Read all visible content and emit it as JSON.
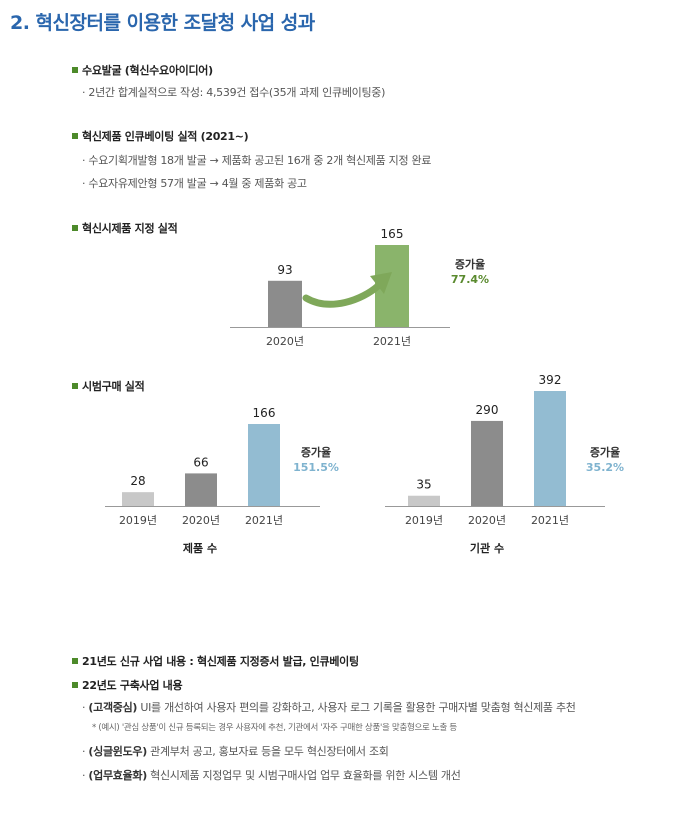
{
  "title": "2. 혁신장터를 이용한 조달청 사업 성과",
  "sections": {
    "demand": {
      "heading": "수요발굴 (혁신수요아이디어)",
      "items": [
        "· 2년간 합계실적으로 작성: 4,539건 접수(35개 과제 인큐베이팅중)"
      ]
    },
    "incubating": {
      "heading": "혁신제품 인큐베이팅 실적 (2021∼)",
      "items": [
        "· 수요기획개발형 18개 발굴 → 제품화 공고된 16개 중 2개 혁신제품 지정 완료",
        "· 수요자유제안형 57개 발굴 → 4월 중 제품화 공고"
      ]
    },
    "trial_designation": {
      "heading": "혁신시제품 지정 실적"
    },
    "trial_purchase": {
      "heading": "시범구매 실적"
    },
    "new_2021": {
      "heading": "21년도 신규 사업 내용 : 혁신제품 지정증서 발급, 인큐베이팅"
    },
    "build_2022": {
      "heading": "22년도 구축사업 내용",
      "items": [
        {
          "bold": "(고객중심)",
          "text": " UI를 개선하여 사용자 편의를 강화하고, 사용자 로그 기록을 활용한 구매자별 맞춤형 혁신제품 추천"
        },
        {
          "bold": "(싱글윈도우)",
          "text": " 관계부처 공고, 홍보자료 등을 모두 혁신장터에서 조회"
        },
        {
          "bold": "(업무효율화)",
          "text": " 혁신시제품 지정업무 및 시범구매사업 업무 효율화를 위한 시스템 개선"
        }
      ],
      "note": "* (예시) '관심 상품'이 신규 등록되는 경우 사용자에 추천, 기관에서 '자주 구매한 상품'을 맞춤형으로 노출 등"
    }
  },
  "chart_data": [
    {
      "type": "bar",
      "categories": [
        "2020년",
        "2021년"
      ],
      "values": [
        93,
        165
      ],
      "colors": [
        "#8c8c8c",
        "#8ab46b"
      ],
      "growth_label": "증가율",
      "growth_value": "77.4%",
      "growth_color": "#5a8a2e",
      "xlabel": ""
    },
    {
      "type": "bar",
      "categories": [
        "2019년",
        "2020년",
        "2021년"
      ],
      "values": [
        28,
        66,
        166
      ],
      "colors": [
        "#c8c8c8",
        "#8c8c8c",
        "#93bcd2"
      ],
      "growth_label": "증가율",
      "growth_value": "151.5%",
      "growth_color": "#7fb3cf",
      "xlabel": "제품 수"
    },
    {
      "type": "bar",
      "categories": [
        "2019년",
        "2020년",
        "2021년"
      ],
      "values": [
        35,
        290,
        392
      ],
      "colors": [
        "#c8c8c8",
        "#8c8c8c",
        "#93bcd2"
      ],
      "growth_label": "증가율",
      "growth_value": "35.2%",
      "growth_color": "#7fb3cf",
      "xlabel": "기관 수"
    }
  ]
}
